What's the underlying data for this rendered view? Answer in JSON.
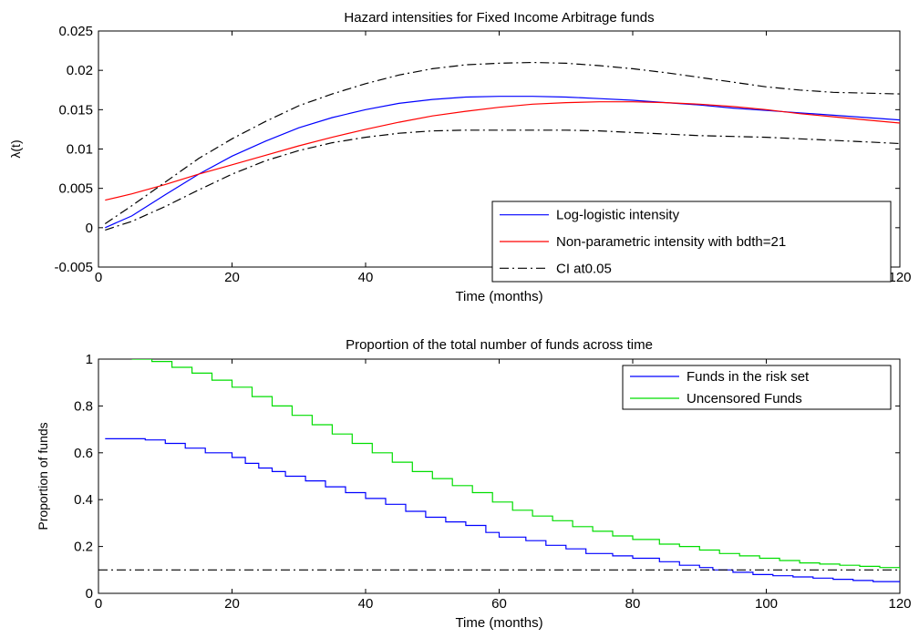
{
  "chart_data": [
    {
      "type": "line",
      "title": "Hazard intensities for Fixed Income Arbitrage funds",
      "xlabel": "Time (months)",
      "ylabel": "λ(t)",
      "xlim": [
        0,
        120
      ],
      "ylim": [
        -0.005,
        0.025
      ],
      "xticks": [
        0,
        20,
        40,
        60,
        80,
        100,
        120
      ],
      "xtick_labels": [
        "0",
        "20",
        "40",
        "60",
        "80",
        "100",
        "120"
      ],
      "yticks": [
        -0.005,
        0,
        0.005,
        0.01,
        0.015,
        0.02,
        0.025
      ],
      "ytick_labels": [
        "-0.005",
        "0",
        "0.005",
        "0.01",
        "0.015",
        "0.02",
        "0.025"
      ],
      "grid": false,
      "legend_position": "bottom-right",
      "series": [
        {
          "name": "Log-logistic intensity",
          "color": "#0000ff",
          "style": "solid",
          "x": [
            1,
            5,
            10,
            15,
            20,
            25,
            30,
            35,
            40,
            45,
            50,
            55,
            60,
            65,
            70,
            75,
            80,
            85,
            90,
            95,
            100,
            105,
            110,
            115,
            120
          ],
          "y": [
            0.0,
            0.0015,
            0.0042,
            0.0068,
            0.0091,
            0.011,
            0.0127,
            0.014,
            0.015,
            0.0158,
            0.0163,
            0.0166,
            0.0167,
            0.0167,
            0.0166,
            0.0164,
            0.0162,
            0.0159,
            0.0156,
            0.0152,
            0.0149,
            0.0146,
            0.0143,
            0.014,
            0.0137
          ]
        },
        {
          "name": "Non-parametric intensity with bdth=21",
          "color": "#ff0000",
          "style": "solid",
          "x": [
            1,
            5,
            10,
            15,
            20,
            25,
            30,
            35,
            40,
            45,
            50,
            55,
            60,
            65,
            70,
            75,
            80,
            85,
            90,
            95,
            100,
            105,
            110,
            115,
            120
          ],
          "y": [
            0.0035,
            0.0043,
            0.0055,
            0.0068,
            0.008,
            0.0092,
            0.0104,
            0.0115,
            0.0125,
            0.0134,
            0.0142,
            0.0148,
            0.0153,
            0.0157,
            0.0159,
            0.016,
            0.016,
            0.0159,
            0.0157,
            0.0154,
            0.015,
            0.0145,
            0.0141,
            0.0137,
            0.0133
          ]
        },
        {
          "name": "CI at0.05",
          "color": "#000000",
          "style": "dashdot",
          "x": [
            1,
            5,
            10,
            15,
            20,
            25,
            30,
            35,
            40,
            45,
            50,
            55,
            60,
            65,
            70,
            75,
            80,
            85,
            90,
            95,
            100,
            105,
            110,
            115,
            120
          ],
          "y": [
            0.0005,
            0.0028,
            0.0058,
            0.0088,
            0.0113,
            0.0135,
            0.0155,
            0.017,
            0.0183,
            0.0194,
            0.0202,
            0.0207,
            0.0209,
            0.021,
            0.0209,
            0.0206,
            0.0202,
            0.0197,
            0.0191,
            0.0185,
            0.0179,
            0.0175,
            0.0172,
            0.0171,
            0.017
          ]
        },
        {
          "name": "",
          "color": "#000000",
          "style": "dashdot",
          "x": [
            1,
            5,
            10,
            15,
            20,
            25,
            30,
            35,
            40,
            45,
            50,
            55,
            60,
            65,
            70,
            75,
            80,
            85,
            90,
            95,
            100,
            105,
            110,
            115,
            120
          ],
          "y": [
            -0.0003,
            0.0008,
            0.0027,
            0.0048,
            0.0068,
            0.0085,
            0.0098,
            0.0108,
            0.0115,
            0.012,
            0.0123,
            0.0124,
            0.0124,
            0.0124,
            0.0124,
            0.0123,
            0.0121,
            0.0119,
            0.0117,
            0.0116,
            0.0115,
            0.0113,
            0.0111,
            0.0109,
            0.0107
          ]
        }
      ]
    },
    {
      "type": "line",
      "title": "Proportion of the total number of funds across time",
      "xlabel": "Time (months)",
      "ylabel": "Proportion of funds",
      "xlim": [
        0,
        120
      ],
      "ylim": [
        0,
        1
      ],
      "xticks": [
        0,
        20,
        40,
        60,
        80,
        100,
        120
      ],
      "xtick_labels": [
        "0",
        "20",
        "40",
        "60",
        "80",
        "100",
        "120"
      ],
      "yticks": [
        0,
        0.2,
        0.4,
        0.6,
        0.8,
        1
      ],
      "ytick_labels": [
        "0",
        "0.2",
        "0.4",
        "0.6",
        "0.8",
        "1"
      ],
      "grid": false,
      "legend_position": "top-right",
      "series": [
        {
          "name": "Funds in the risk set",
          "color": "#0000ff",
          "style": "solid",
          "step": true,
          "x": [
            1,
            7,
            10,
            13,
            16,
            20,
            22,
            24,
            26,
            28,
            31,
            34,
            37,
            40,
            43,
            46,
            49,
            52,
            55,
            58,
            60,
            64,
            67,
            70,
            73,
            77,
            80,
            84,
            87,
            90,
            92,
            95,
            98,
            101,
            104,
            107,
            110,
            113,
            116,
            120
          ],
          "y": [
            0.66,
            0.655,
            0.64,
            0.62,
            0.6,
            0.58,
            0.555,
            0.535,
            0.52,
            0.5,
            0.48,
            0.455,
            0.43,
            0.405,
            0.38,
            0.35,
            0.325,
            0.305,
            0.29,
            0.26,
            0.24,
            0.225,
            0.205,
            0.19,
            0.17,
            0.16,
            0.15,
            0.135,
            0.12,
            0.11,
            0.1,
            0.09,
            0.08,
            0.075,
            0.07,
            0.065,
            0.06,
            0.055,
            0.05,
            0.045
          ]
        },
        {
          "name": "Uncensored Funds",
          "color": "#00dd00",
          "style": "solid",
          "step": true,
          "x": [
            5,
            8,
            11,
            14,
            17,
            20,
            23,
            26,
            29,
            32,
            35,
            38,
            41,
            44,
            47,
            50,
            53,
            56,
            59,
            62,
            65,
            68,
            71,
            74,
            77,
            80,
            84,
            87,
            90,
            93,
            96,
            99,
            102,
            105,
            108,
            111,
            114,
            117,
            120
          ],
          "y": [
            1.0,
            0.99,
            0.965,
            0.94,
            0.91,
            0.88,
            0.84,
            0.8,
            0.76,
            0.72,
            0.68,
            0.64,
            0.6,
            0.56,
            0.52,
            0.49,
            0.46,
            0.43,
            0.39,
            0.355,
            0.33,
            0.31,
            0.285,
            0.265,
            0.245,
            0.23,
            0.21,
            0.2,
            0.185,
            0.17,
            0.16,
            0.15,
            0.14,
            0.13,
            0.125,
            0.12,
            0.115,
            0.11,
            0.1
          ]
        },
        {
          "name": "",
          "color": "#000000",
          "style": "dashdot",
          "x": [
            0,
            120
          ],
          "y": [
            0.1,
            0.1
          ]
        }
      ]
    }
  ]
}
